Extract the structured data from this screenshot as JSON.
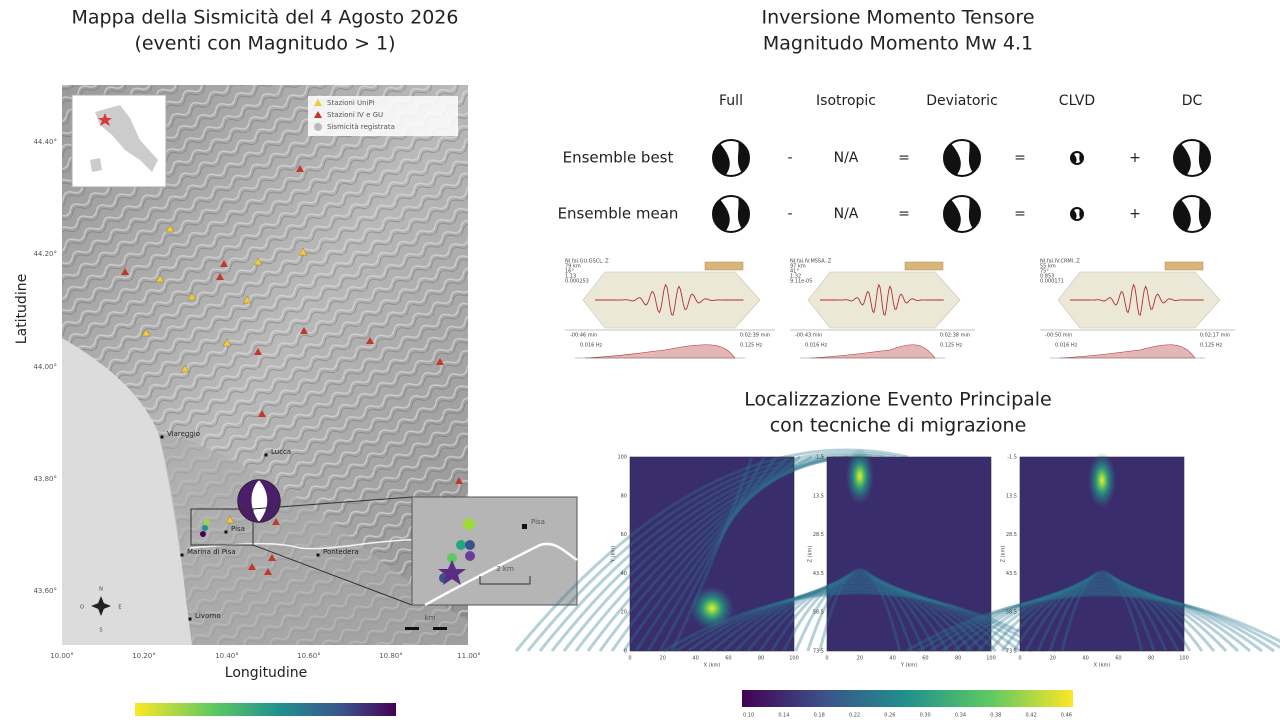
{
  "map": {
    "title": [
      "Mappa della Sismicità del 4 Agosto 2026",
      "(eventi con Magnitudo > 1)"
    ],
    "legend": [
      "Stazioni UniPi",
      "Stazioni IV e GU",
      "Sismicità registrata"
    ],
    "y_axis_label": "Latitudine",
    "x_axis_label": "Longitudine",
    "yticks": [
      "44.40°",
      "44.20°",
      "44.00°",
      "43.80°",
      "43.60°"
    ],
    "xticks": [
      "10.00°",
      "10.20°",
      "10.40°",
      "10.60°",
      "10.80°",
      "11.00°"
    ],
    "places": [
      "Viareggio",
      "Lucca",
      "Pisa",
      "Marina di Pisa",
      "Pontedera",
      "Livorno"
    ],
    "inset": {
      "place": "Pisa",
      "scale": "2 km"
    },
    "scale_bar": "km",
    "compass": [
      "N",
      "E",
      "S",
      "O"
    ]
  },
  "moment_tensor": {
    "title": [
      "Inversione Momento Tensore",
      "Magnitudo Momento Mw 4.1"
    ],
    "columns": [
      "Full",
      "Isotropic",
      "Deviatoric",
      "CLVD",
      "DC"
    ],
    "rows": [
      {
        "label": "Ensemble best",
        "symbols": [
          "-",
          "N/A",
          "=",
          "=",
          "+"
        ]
      },
      {
        "label": "Ensemble mean",
        "symbols": [
          "-",
          "N/A",
          "=",
          "=",
          "+"
        ]
      }
    ],
    "waveforms": [
      {
        "lines": [
          "NI.fai.GU.GSCL..Z",
          "79 km",
          "16°",
          "1.13",
          "0.000253"
        ],
        "time": [
          "-00:46 min",
          "0:02:39 min"
        ],
        "freq": [
          "0.016 Hz",
          "0.125 Hz"
        ]
      },
      {
        "lines": [
          "NI.fai.IV.MSSA..Z",
          "97 km",
          "41°",
          "1.32",
          "9.11e-05"
        ],
        "time": [
          "-00:43 min",
          "0:02:38 min"
        ],
        "freq": [
          "0.016 Hz",
          "0.125 Hz"
        ]
      },
      {
        "lines": [
          "NI.fai.IV.CRMI..Z",
          "55 km",
          "75°",
          "0.853",
          "0.000171"
        ],
        "time": [
          "-00:50 min",
          "0:02:17 min"
        ],
        "freq": [
          "0.016 Hz",
          "0.125 Hz"
        ]
      }
    ]
  },
  "migration": {
    "title": [
      "Localizzazione Evento Principale",
      "con tecniche di migrazione"
    ],
    "panels": [
      {
        "xlabel": "X (km)",
        "ylabel": "Y (km)",
        "xticks": [
          "0",
          "20",
          "40",
          "60",
          "80",
          "100"
        ],
        "yticks": [
          "100",
          "80",
          "60",
          "40",
          "20",
          "0"
        ]
      },
      {
        "xlabel": "Y (km)",
        "ylabel": "Z (km)",
        "xticks": [
          "0",
          "20",
          "40",
          "60",
          "80",
          "100"
        ],
        "yticks": [
          "-1.5",
          "13.5",
          "28.5",
          "43.5",
          "58.5",
          "73.5"
        ]
      },
      {
        "xlabel": "X (km)",
        "ylabel": "Z (km)",
        "xticks": [
          "0",
          "20",
          "40",
          "60",
          "80",
          "100"
        ],
        "yticks": [
          "-1.5",
          "13.5",
          "28.5",
          "43.5",
          "58.5",
          "73.5"
        ]
      }
    ],
    "colorbar_ticks": [
      "0.10",
      "0.14",
      "0.18",
      "0.22",
      "0.26",
      "0.30",
      "0.34",
      "0.38",
      "0.42",
      "0.46"
    ]
  }
}
